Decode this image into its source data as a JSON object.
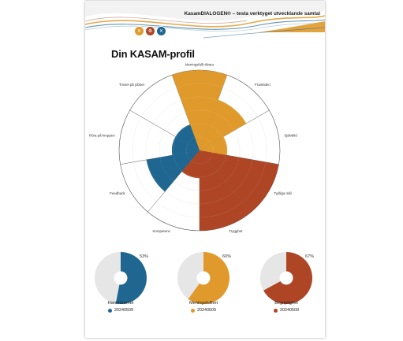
{
  "header": {
    "title": "KasamDIALOGEN® – testa verktyget utvecklande samtal",
    "badge_icons": [
      "fork-knife-icon",
      "gear-icon",
      "fork-knife-icon"
    ]
  },
  "page_title": "Din KASAM-profil",
  "footer_text": "",
  "colors": {
    "orange": "#E09A2B",
    "blue": "#1F6791",
    "rust": "#AE4626",
    "grey": "#E6E6E6",
    "grid": "#BFBFBF"
  },
  "chart_data": [
    {
      "type": "polar-area",
      "title": "Din KASAM-profil",
      "categories": [
        "Meningsfullt tilvaro",
        "Framtiden",
        "Självbild",
        "Tydliga mål",
        "Trygghet",
        "Kompetens",
        "Feedback",
        "Röra på kroppen",
        "Trivsel på jobbet"
      ],
      "values": [
        5,
        3,
        1,
        5,
        5,
        1,
        3,
        1,
        1
      ],
      "ylim": [
        0,
        5
      ],
      "segment_colors": [
        "#E09A2B",
        "#E09A2B",
        "#E09A2B",
        "#AE4626",
        "#AE4626",
        "#AE4626",
        "#1F6791",
        "#1F6791",
        "#1F6791"
      ],
      "grid": true
    },
    {
      "type": "pie",
      "title": "Hanterbarhet",
      "values": [
        53,
        47
      ],
      "percent_label": "53%",
      "legend": "20240509",
      "color": "#1F6791"
    },
    {
      "type": "pie",
      "title": "Meningsfullhet",
      "values": [
        60,
        40
      ],
      "percent_label": "60%",
      "legend": "20240509",
      "color": "#E09A2B"
    },
    {
      "type": "pie",
      "title": "Begriplighet",
      "values": [
        67,
        33
      ],
      "percent_label": "67%",
      "legend": "20240509",
      "color": "#AE4626"
    }
  ]
}
